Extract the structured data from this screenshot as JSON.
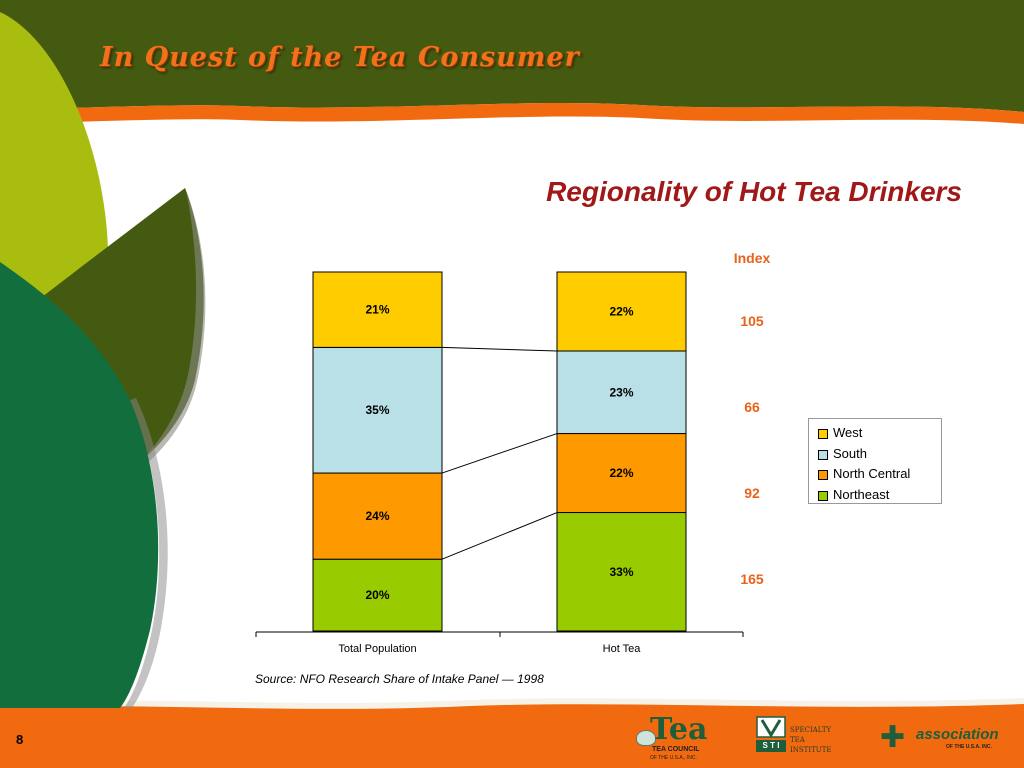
{
  "slide": {
    "title": "In Quest of the Tea Consumer",
    "page_number": "8",
    "source": "Source: NFO Research Share of Intake Panel — 1998",
    "colors": {
      "header_green": "#445a10",
      "accent_orange": "#f26a10",
      "footer_orange": "#f26a10"
    }
  },
  "chart_data": {
    "type": "bar",
    "stacked": true,
    "percent_stacked": true,
    "title": "Regionality of Hot Tea Drinkers",
    "categories": [
      "Total Population",
      "Hot Tea"
    ],
    "series": [
      {
        "name": "Northeast",
        "values": [
          20,
          33
        ],
        "labels": [
          "20%",
          "33%"
        ],
        "color": "#99cc00"
      },
      {
        "name": "North Central",
        "values": [
          24,
          22
        ],
        "labels": [
          "24%",
          "22%"
        ],
        "color": "#ff9900"
      },
      {
        "name": "South",
        "values": [
          35,
          23
        ],
        "labels": [
          "35%",
          "23%"
        ],
        "color": "#b8e0e6"
      },
      {
        "name": "West",
        "values": [
          21,
          22
        ],
        "labels": [
          "21%",
          "22%"
        ],
        "color": "#ffcc00"
      }
    ],
    "legend": {
      "placement": "right",
      "order": [
        "West",
        "South",
        "North Central",
        "Northeast"
      ]
    },
    "index": {
      "header": "Index",
      "values": [
        {
          "region": "West",
          "value": "105"
        },
        {
          "region": "South",
          "value": "66"
        },
        {
          "region": "North Central",
          "value": "92"
        },
        {
          "region": "Northeast",
          "value": "165"
        }
      ]
    },
    "ylim": [
      0,
      100
    ],
    "grid": false
  },
  "logos": {
    "tea_council": {
      "word": "Tea",
      "line1": "TEA COUNCIL",
      "line2": "OF THE U.S.A., INC."
    },
    "sti": {
      "mark": "S T I",
      "line1": "SPECIALTY",
      "line2": "TEA",
      "line3": "INSTITUTE"
    },
    "tea_association": {
      "word": "association",
      "sub": "OF THE U.S.A. INC."
    }
  }
}
